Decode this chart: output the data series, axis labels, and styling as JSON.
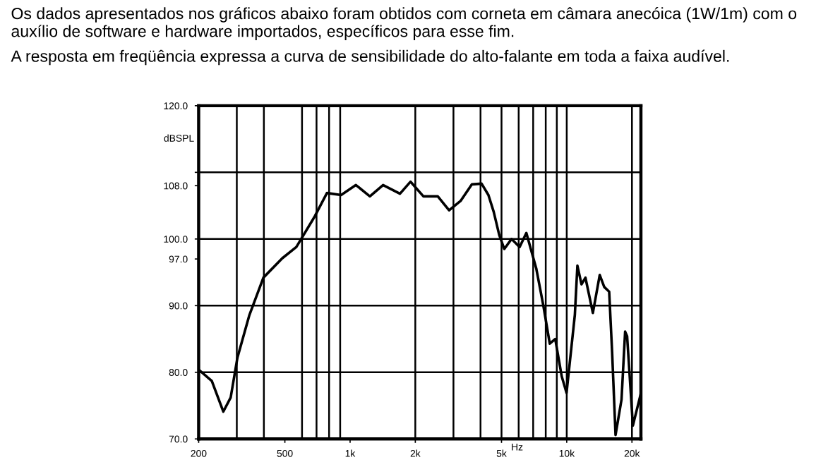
{
  "chart_data": {
    "type": "line",
    "title": "Os dados apresentados nos gráficos abaixo foram obtidos com corneta em câmara anecóica (1W/1m) com o auxílio de software e hardware importados, específicos para esse fim.",
    "subtitle": "A resposta em freqüência expressa a curva de sensibilidade do alto-falante em toda a faixa audível.",
    "xlabel": "Hz",
    "ylabel": "dBSPL",
    "log": "x",
    "series": [
      {
        "color": "#000000",
        "x": [
          200,
          230,
          260,
          281,
          302,
          343,
          398,
          486,
          565,
          687,
          782,
          909,
          1064,
          1234,
          1420,
          1699,
          1900,
          2180,
          2540,
          2864,
          3235,
          3650,
          4046,
          4350,
          4600,
          4880,
          5150,
          5560,
          6060,
          6510,
          7230,
          7800,
          8350,
          8850,
          9480,
          9980,
          10900,
          11200,
          11700,
          12200,
          13200,
          14200,
          14900,
          15700,
          16200,
          16800,
          17900,
          18600,
          19000,
          20200,
          21900
        ],
        "values": [
          80.4,
          78.7,
          74.1,
          76.2,
          82.2,
          88.6,
          94.2,
          97.1,
          98.8,
          103.4,
          106.9,
          106.6,
          108.1,
          106.4,
          108.1,
          106.8,
          108.6,
          106.4,
          106.4,
          104.3,
          105.7,
          108.2,
          108.3,
          106.6,
          104.1,
          100.6,
          98.5,
          100.0,
          98.8,
          100.9,
          95.6,
          90.0,
          84.3,
          85.0,
          79.4,
          76.9,
          88.6,
          96.0,
          93.2,
          94.2,
          88.9,
          94.6,
          92.8,
          92.1,
          83.0,
          70.6,
          75.9,
          86.1,
          85.4,
          72.0,
          76.6
        ]
      }
    ],
    "xlim": [
      200,
      22000
    ],
    "ylim": [
      70,
      120
    ],
    "xticks": [
      200,
      500,
      {
        "value": 1000,
        "label": "1k"
      },
      {
        "value": 2000,
        "label": "2k"
      },
      {
        "value": 5000,
        "label": "5k"
      },
      {
        "value": 10000,
        "label": "10k"
      },
      {
        "value": 20000,
        "label": "20k"
      }
    ],
    "yticks": [
      {
        "value": 70,
        "label": "70.0"
      },
      {
        "value": 80,
        "label": "80.0"
      },
      {
        "value": 90,
        "label": "90.0"
      },
      {
        "value": 97,
        "label": "97.0"
      },
      {
        "value": 100,
        "label": "100.0"
      },
      {
        "value": 108,
        "label": "108.0"
      },
      {
        "value": 110,
        "label": null
      },
      {
        "value": 120,
        "label": "120.0"
      }
    ],
    "ref_lines": [
      {
        "axis": "x",
        "value": 300,
        "color": "#000000"
      },
      {
        "axis": "x",
        "value": 400,
        "color": "#000000"
      },
      {
        "axis": "x",
        "value": 600,
        "color": "#000000"
      },
      {
        "axis": "x",
        "value": 700,
        "color": "#000000"
      },
      {
        "axis": "x",
        "value": 800,
        "color": "#000000"
      },
      {
        "axis": "x",
        "value": 900,
        "color": "#000000"
      },
      {
        "axis": "x",
        "value": 2000,
        "color": "#000000"
      },
      {
        "axis": "x",
        "value": 3000,
        "color": "#000000"
      },
      {
        "axis": "x",
        "value": 4000,
        "color": "#000000"
      },
      {
        "axis": "x",
        "value": 5000,
        "color": "#000000"
      },
      {
        "axis": "x",
        "value": 6000,
        "color": "#000000"
      },
      {
        "axis": "x",
        "value": 7000,
        "color": "#000000"
      },
      {
        "axis": "x",
        "value": 8000,
        "color": "#000000"
      },
      {
        "axis": "x",
        "value": 9000,
        "color": "#000000"
      },
      {
        "axis": "x",
        "value": 10000,
        "color": "#000000"
      },
      {
        "axis": "x",
        "value": 20000,
        "color": "#000000"
      },
      {
        "axis": "y",
        "value": 80,
        "color": "#000000"
      },
      {
        "axis": "y",
        "value": 90,
        "color": "#000000"
      },
      {
        "axis": "y",
        "value": 100,
        "color": "#000000"
      },
      {
        "axis": "y",
        "value": 110,
        "color": "#000000"
      }
    ],
    "grid": false,
    "legend": false,
    "marker": "none",
    "line_style": "solid"
  }
}
